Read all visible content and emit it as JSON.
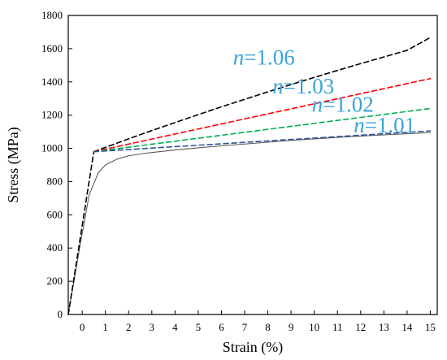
{
  "chart_data": {
    "type": "line",
    "title": "",
    "xlabel": "Strain (%)",
    "ylabel": "Stress (MPa)",
    "xlim": [
      -0.6,
      15.3
    ],
    "ylim": [
      0,
      1800
    ],
    "x_ticks": [
      0,
      1,
      2,
      3,
      4,
      5,
      6,
      7,
      8,
      9,
      10,
      11,
      12,
      13,
      14,
      15
    ],
    "y_ticks": [
      0,
      200,
      400,
      600,
      800,
      1000,
      1200,
      1400,
      1600,
      1800
    ],
    "grid": false,
    "series": [
      {
        "style": "solid",
        "color": "#5a5a5a",
        "points": [
          [
            -0.6,
            0
          ],
          [
            -0.1,
            410
          ],
          [
            0.3,
            720
          ],
          [
            0.7,
            855
          ],
          [
            1.0,
            900
          ],
          [
            1.5,
            935
          ],
          [
            2.0,
            955
          ],
          [
            2.5,
            966
          ],
          [
            3.0,
            975
          ],
          [
            4.0,
            990
          ],
          [
            5.0,
            1003
          ],
          [
            6.0,
            1015
          ],
          [
            7.0,
            1026
          ],
          [
            8.0,
            1037
          ],
          [
            9.0,
            1048
          ],
          [
            10.0,
            1057
          ],
          [
            11.0,
            1066
          ],
          [
            12.0,
            1074
          ],
          [
            13.0,
            1081
          ],
          [
            14.0,
            1088
          ],
          [
            15.0,
            1095
          ]
        ]
      },
      {
        "style": "dashed",
        "color": "#000000",
        "points": [
          [
            -0.6,
            0
          ],
          [
            0.5,
            980
          ]
        ]
      },
      {
        "style": "dashed",
        "color": "#000000",
        "points": [
          [
            0.5,
            980
          ],
          [
            1,
            1006
          ],
          [
            2,
            1057
          ],
          [
            3,
            1107
          ],
          [
            4,
            1155
          ],
          [
            5,
            1203
          ],
          [
            6,
            1250
          ],
          [
            7,
            1295
          ],
          [
            8,
            1340
          ],
          [
            9,
            1384
          ],
          [
            10,
            1427
          ],
          [
            11,
            1469
          ],
          [
            12,
            1510
          ],
          [
            13,
            1550
          ],
          [
            14,
            1590
          ],
          [
            15,
            1667
          ]
        ]
      },
      {
        "style": "dashed",
        "color": "#ff0000",
        "points": [
          [
            0.5,
            980
          ],
          [
            15,
            1420
          ]
        ]
      },
      {
        "style": "dashed",
        "color": "#00b050",
        "points": [
          [
            0.5,
            980
          ],
          [
            15,
            1240
          ]
        ]
      },
      {
        "style": "dashed",
        "color": "#2f5597",
        "points": [
          [
            0.5,
            980
          ],
          [
            15,
            1105
          ]
        ]
      }
    ],
    "annotations": [
      {
        "text_prefix": "n",
        "text_suffix": "=1.06",
        "x": 6.5,
        "y": 1505
      },
      {
        "text_prefix": "n",
        "text_suffix": "=1.03",
        "x": 8.2,
        "y": 1330
      },
      {
        "text_prefix": "n",
        "text_suffix": "=1.02",
        "x": 9.9,
        "y": 1220
      },
      {
        "text_prefix": "n",
        "text_suffix": "=1.01",
        "x": 11.7,
        "y": 1095
      }
    ]
  }
}
